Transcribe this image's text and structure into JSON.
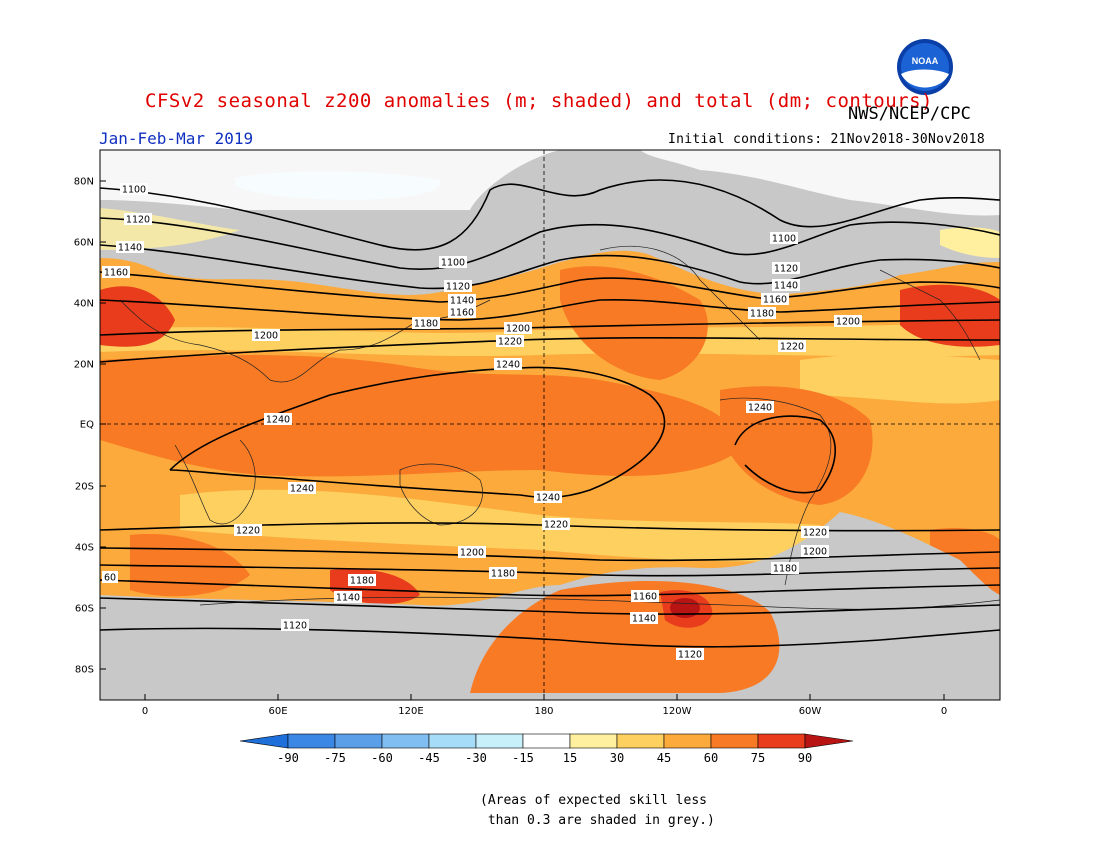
{
  "title": "CFSv2 seasonal z200 anomalies (m; shaded) and total (dm; contours)",
  "agency": "NWS/NCEP/CPC",
  "logo_text": "NOAA",
  "season": "Jan-Feb-Mar 2019",
  "initial_conditions": "Initial conditions: 21Nov2018-30Nov2018",
  "lat_labels": [
    "80N",
    "60N",
    "40N",
    "20N",
    "EQ",
    "20S",
    "40S",
    "60S",
    "80S"
  ],
  "lon_labels": [
    "0",
    "60E",
    "120E",
    "180",
    "120W",
    "60W",
    "0"
  ],
  "contour_labels": [
    "1100",
    "1120",
    "1140",
    "1160",
    "1180",
    "1200",
    "1220",
    "1240",
    "60"
  ],
  "colorbar": {
    "labels": [
      "-90",
      "-75",
      "-60",
      "-45",
      "-30",
      "-15",
      "15",
      "30",
      "45",
      "60",
      "75",
      "90"
    ],
    "colors": [
      "#1e6fd9",
      "#3a87e6",
      "#5a9fe8",
      "#80bdf0",
      "#a7dcf8",
      "#c8f0fb",
      "#ffffff",
      "#fff0a0",
      "#fdd060",
      "#fcaa3c",
      "#f87a24",
      "#e83c1c",
      "#b81414"
    ]
  },
  "note": "(Areas of expected skill less\n than 0.3 are shaded in grey.)",
  "colors": {
    "title": "#e00000",
    "season": "#1030c0",
    "grey_mask": "#c8c8c8"
  }
}
